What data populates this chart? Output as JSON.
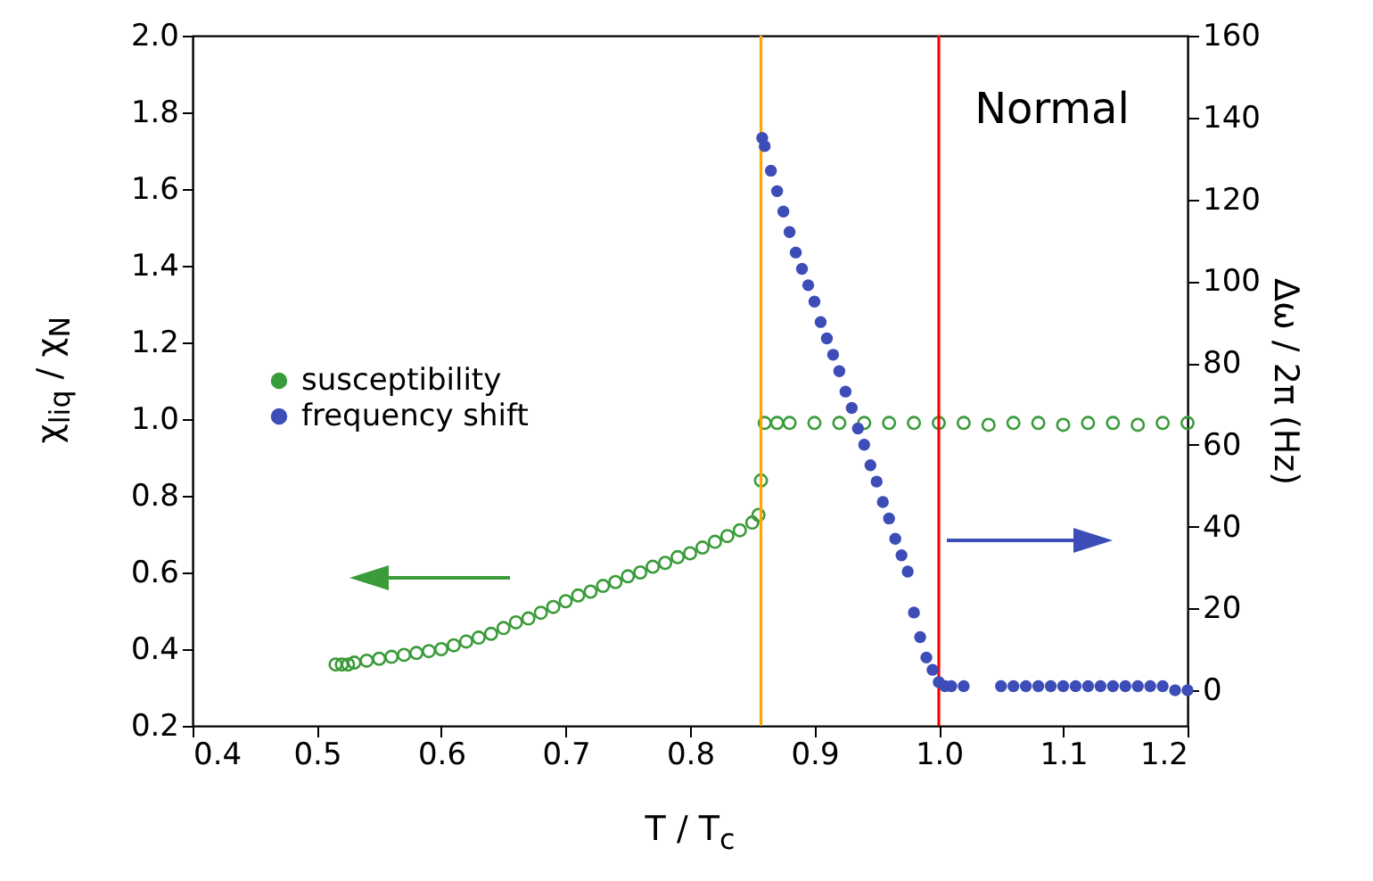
{
  "chart_data": {
    "type": "scatter",
    "xlabel": "T / T$_{c}$",
    "ylabel": "χ$_{liq}$ / χ$_{N}$",
    "y2label": "Δω / 2π (Hz)",
    "xlim": [
      0.4,
      1.2
    ],
    "xticks": [
      0.4,
      0.5,
      0.6,
      0.7,
      0.8,
      0.9,
      {
        "value": 1,
        "label": "1.0"
      },
      1.1,
      1.2
    ],
    "ylim": [
      0.2,
      2.0
    ],
    "yticks": [
      0.2,
      0.4,
      0.6,
      0.8,
      {
        "value": 1,
        "label": "1.0"
      },
      1.2,
      1.4,
      1.6,
      1.8,
      {
        "value": 2,
        "label": "2.0"
      }
    ],
    "y2lim": [
      -8.7,
      160
    ],
    "y2ticks": [
      0,
      20,
      40,
      60,
      80,
      100,
      120,
      140,
      160
    ],
    "marker": "circle",
    "legend": "left",
    "grid": false,
    "annotations": [
      "Normal"
    ],
    "ref_lines": [
      {
        "axis": "x",
        "value": 0.857,
        "color": "#ffa500"
      },
      {
        "axis": "x",
        "value": 1.0,
        "color": "#ff0000"
      }
    ],
    "series": [
      {
        "name": "susceptibility",
        "color": "#3a9b3a",
        "x": [
          0.515,
          0.52,
          0.525,
          0.53,
          0.54,
          0.55,
          0.56,
          0.57,
          0.58,
          0.59,
          0.6,
          0.61,
          0.62,
          0.63,
          0.64,
          0.65,
          0.66,
          0.67,
          0.68,
          0.69,
          0.7,
          0.71,
          0.72,
          0.73,
          0.74,
          0.75,
          0.76,
          0.77,
          0.78,
          0.79,
          0.8,
          0.81,
          0.82,
          0.83,
          0.84,
          0.85,
          0.855,
          0.857,
          0.86,
          0.87,
          0.88,
          0.9,
          0.92,
          0.94,
          0.96,
          0.98,
          1.0,
          1.02,
          1.04,
          1.06,
          1.08,
          1.1,
          1.12,
          1.14,
          1.16,
          1.18,
          1.2
        ],
        "values": [
          0.36,
          0.36,
          0.36,
          0.365,
          0.37,
          0.375,
          0.38,
          0.385,
          0.39,
          0.395,
          0.4,
          0.41,
          0.42,
          0.43,
          0.44,
          0.455,
          0.47,
          0.48,
          0.495,
          0.51,
          0.525,
          0.54,
          0.55,
          0.565,
          0.575,
          0.59,
          0.6,
          0.615,
          0.625,
          0.64,
          0.65,
          0.665,
          0.68,
          0.695,
          0.71,
          0.73,
          0.75,
          0.84,
          0.99,
          0.99,
          0.99,
          0.99,
          0.99,
          0.99,
          0.99,
          0.99,
          0.99,
          0.99,
          0.985,
          0.99,
          0.99,
          0.985,
          0.99,
          0.99,
          0.985,
          0.99,
          0.99
        ]
      },
      {
        "name": "frequency shift",
        "color": "#3d4db7",
        "axis": "y2",
        "x": [
          0.858,
          0.86,
          0.865,
          0.87,
          0.875,
          0.88,
          0.885,
          0.89,
          0.895,
          0.9,
          0.905,
          0.91,
          0.915,
          0.92,
          0.925,
          0.93,
          0.935,
          0.94,
          0.945,
          0.95,
          0.955,
          0.96,
          0.965,
          0.97,
          0.975,
          0.98,
          0.985,
          0.99,
          0.995,
          1.0,
          1.005,
          1.01,
          1.02,
          1.05,
          1.06,
          1.07,
          1.08,
          1.09,
          1.1,
          1.11,
          1.12,
          1.13,
          1.14,
          1.15,
          1.16,
          1.17,
          1.18,
          1.19,
          1.2
        ],
        "values": [
          135,
          133,
          127,
          122,
          117,
          112,
          107,
          103,
          99,
          95,
          90,
          86,
          82,
          78,
          73,
          69,
          64,
          60,
          55,
          51,
          46,
          42,
          37,
          33,
          29,
          19,
          13,
          8,
          5,
          2,
          1,
          1,
          1,
          1,
          1,
          1,
          1,
          1,
          1,
          1,
          1,
          1,
          1,
          1,
          1,
          1,
          1,
          0,
          0
        ]
      }
    ]
  }
}
